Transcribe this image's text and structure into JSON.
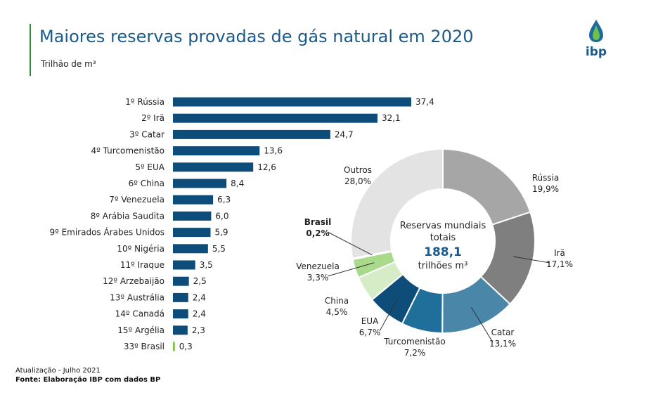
{
  "header": {
    "title": "Maiores reservas provadas de gás natural em 2020",
    "subtitle": "Trilhão de m³",
    "logo_text": "ibp"
  },
  "footer": {
    "update": "Atualização - Julho 2021",
    "source": "Fonte: Elaboração IBP com dados BP"
  },
  "colors": {
    "bar": "#0e4d7a",
    "brazil_bar": "#7dc142",
    "title": "#1b5a8a",
    "accent_line": "#2e8b3a"
  },
  "chart_data": [
    {
      "type": "bar",
      "orientation": "horizontal",
      "title": "Maiores reservas provadas de gás natural em 2020",
      "unit": "Trilhão de m³",
      "categories": [
        "1º Rússia",
        "2º Irã",
        "3º Catar",
        "4º Turcomenistão",
        "5º EUA",
        "6º China",
        "7º Venezuela",
        "8º Arábia Saudita",
        "9º Emirados Árabes Unidos",
        "10º Nigéria",
        "11º Iraque",
        "12º Arzebaijão",
        "13º Austrália",
        "14º Canadá",
        "15º Argélia",
        "33º Brasil"
      ],
      "values": [
        37.4,
        32.1,
        24.7,
        13.6,
        12.6,
        8.4,
        6.3,
        6.0,
        5.9,
        5.5,
        3.5,
        2.5,
        2.4,
        2.4,
        2.3,
        0.3
      ],
      "value_labels": [
        "37,4",
        "32,1",
        "24,7",
        "13,6",
        "12,6",
        "8,4",
        "6,3",
        "6,0",
        "5,9",
        "5,5",
        "3,5",
        "2,5",
        "2,4",
        "2,4",
        "2,3",
        "0,3"
      ],
      "xlim": [
        0,
        40
      ]
    },
    {
      "type": "pie",
      "style": "donut",
      "center_text": [
        "Reservas mundiais",
        "totais",
        "188,1",
        "trilhões m³"
      ],
      "slices": [
        {
          "label": "Rússia",
          "pct_label": "19,9%",
          "value": 19.9,
          "color": "#a6a6a6"
        },
        {
          "label": "Irã",
          "pct_label": "17,1%",
          "value": 17.1,
          "color": "#7f7f7f"
        },
        {
          "label": "Catar",
          "pct_label": "13,1%",
          "value": 13.1,
          "color": "#4a86a8"
        },
        {
          "label": "Turcomenistão",
          "pct_label": "7,2%",
          "value": 7.2,
          "color": "#1f6f9a"
        },
        {
          "label": "EUA",
          "pct_label": "6,7%",
          "value": 6.7,
          "color": "#0e4d7a"
        },
        {
          "label": "China",
          "pct_label": "4,5%",
          "value": 4.5,
          "color": "#d6ecc6"
        },
        {
          "label": "Venezuela",
          "pct_label": "3,3%",
          "value": 3.3,
          "color": "#a9d98a"
        },
        {
          "label": "Brasil",
          "pct_label": "0,2%",
          "value": 0.2,
          "color": "#5aa83a"
        },
        {
          "label": "Outros",
          "pct_label": "28,0%",
          "value": 28.0,
          "color": "#e3e3e3"
        }
      ]
    }
  ]
}
